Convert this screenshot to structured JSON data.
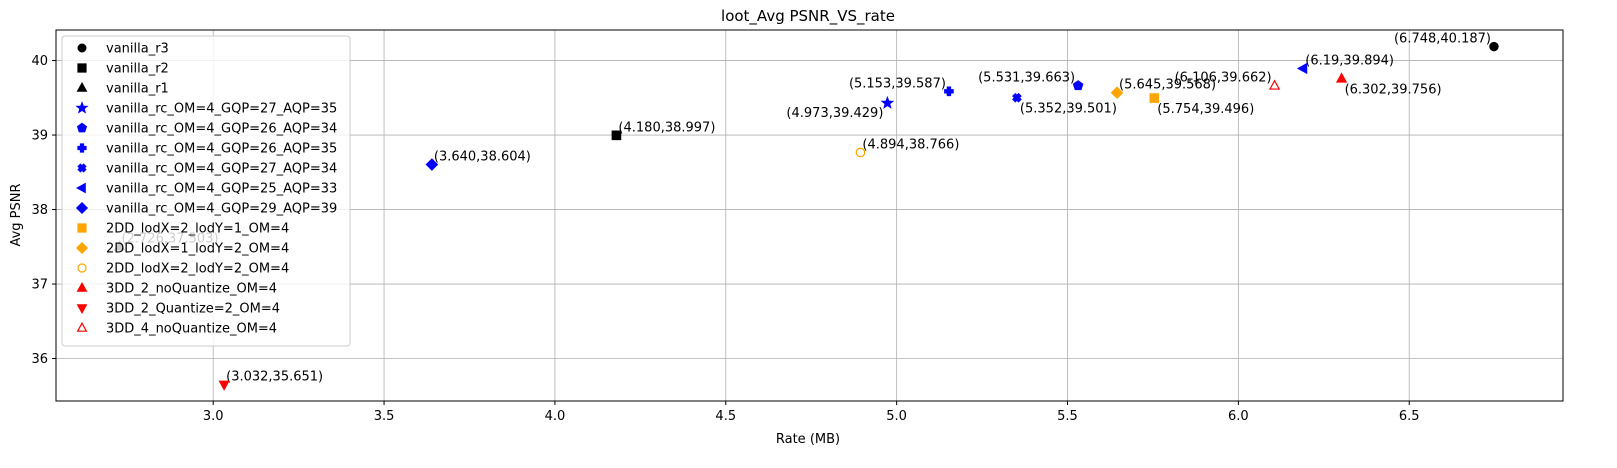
{
  "chart_data": {
    "type": "scatter",
    "title": "loot_Avg PSNR_VS_rate",
    "xlabel": "Rate (MB)",
    "ylabel": "Avg PSNR",
    "xlim": [
      2.54,
      6.95
    ],
    "ylim": [
      35.43,
      40.41
    ],
    "xticks": [
      3.0,
      3.5,
      4.0,
      4.5,
      5.0,
      5.5,
      6.0,
      6.5
    ],
    "xtick_labels": [
      "3.0",
      "3.5",
      "4.0",
      "4.5",
      "5.0",
      "5.5",
      "6.0",
      "6.5"
    ],
    "yticks": [
      36,
      37,
      38,
      39,
      40
    ],
    "ytick_labels": [
      "36",
      "37",
      "38",
      "39",
      "40"
    ],
    "grid": true,
    "legend_position": "upper-left",
    "series": [
      {
        "name": "vanilla_r3",
        "marker": "circle",
        "color": "#000000",
        "filled": true,
        "points": [
          {
            "x": 6.748,
            "y": 40.187,
            "label": "(6.748,40.187)",
            "label_pos": "upper-left"
          }
        ]
      },
      {
        "name": "vanilla_r2",
        "marker": "square",
        "color": "#000000",
        "filled": true,
        "points": [
          {
            "x": 4.18,
            "y": 38.997,
            "label": "(4.180,38.997)",
            "label_pos": "upper-right"
          }
        ]
      },
      {
        "name": "vanilla_r1",
        "marker": "triangle-up",
        "color": "#000000",
        "filled": true,
        "points": [
          {
            "x": 2.726,
            "y": 37.503,
            "label": "(2.726,37.503)",
            "label_pos": "upper-right"
          }
        ]
      },
      {
        "name": "vanilla_rc_OM=4_GQP=27_AQP=35",
        "marker": "star",
        "color": "#0000ff",
        "filled": true,
        "points": [
          {
            "x": 4.973,
            "y": 39.429,
            "label": "(4.973,39.429)",
            "label_pos": "lower-left"
          }
        ]
      },
      {
        "name": "vanilla_rc_OM=4_GQP=26_AQP=34",
        "marker": "pentagon",
        "color": "#0000ff",
        "filled": true,
        "points": [
          {
            "x": 5.531,
            "y": 39.663,
            "label": "(5.531,39.663)",
            "label_pos": "upper-left"
          }
        ]
      },
      {
        "name": "vanilla_rc_OM=4_GQP=26_AQP=35",
        "marker": "plus",
        "color": "#0000ff",
        "filled": true,
        "points": [
          {
            "x": 5.153,
            "y": 39.587,
            "label": "(5.153,39.587)",
            "label_pos": "upper-left"
          }
        ]
      },
      {
        "name": "vanilla_rc_OM=4_GQP=27_AQP=34",
        "marker": "x",
        "color": "#0000ff",
        "filled": true,
        "points": [
          {
            "x": 5.352,
            "y": 39.501,
            "label": "(5.352,39.501)",
            "label_pos": "lower-right"
          }
        ]
      },
      {
        "name": "vanilla_rc_OM=4_GQP=25_AQP=33",
        "marker": "triangle-left",
        "color": "#0000ff",
        "filled": true,
        "points": [
          {
            "x": 6.19,
            "y": 39.894,
            "label": "(6.19,39.894)",
            "label_pos": "upper-right"
          }
        ]
      },
      {
        "name": "vanilla_rc_OM=4_GQP=29_AQP=39",
        "marker": "diamond",
        "color": "#0000ff",
        "filled": true,
        "points": [
          {
            "x": 3.64,
            "y": 38.604,
            "label": "(3.640,38.604)",
            "label_pos": "upper-right"
          }
        ]
      },
      {
        "name": "2DD_lodX=2_lodY=1_OM=4",
        "marker": "square",
        "color": "#ffa500",
        "filled": true,
        "points": [
          {
            "x": 5.754,
            "y": 39.496,
            "label": "(5.754,39.496)",
            "label_pos": "lower-right"
          }
        ]
      },
      {
        "name": "2DD_lodX=1_lodY=2_OM=4",
        "marker": "diamond",
        "color": "#ffa500",
        "filled": true,
        "points": [
          {
            "x": 5.645,
            "y": 39.568,
            "label": "(5.645,39.568)",
            "label_pos": "upper-right"
          }
        ]
      },
      {
        "name": "2DD_lodX=2_lodY=2_OM=4",
        "marker": "octagon",
        "color": "#ffa500",
        "filled": false,
        "points": [
          {
            "x": 4.894,
            "y": 38.766,
            "label": "(4.894,38.766)",
            "label_pos": "upper-right"
          }
        ]
      },
      {
        "name": "3DD_2_noQuantize_OM=4",
        "marker": "triangle-up",
        "color": "#ff0000",
        "filled": true,
        "points": [
          {
            "x": 6.302,
            "y": 39.756,
            "label": "(6.302,39.756)",
            "label_pos": "lower-right"
          }
        ]
      },
      {
        "name": "3DD_2_Quantize=2_OM=4",
        "marker": "triangle-down",
        "color": "#ff0000",
        "filled": true,
        "points": [
          {
            "x": 3.032,
            "y": 35.651,
            "label": "(3.032,35.651)",
            "label_pos": "upper-right"
          }
        ]
      },
      {
        "name": "3DD_4_noQuantize_OM=4",
        "marker": "triangle-up",
        "color": "#ff0000",
        "filled": false,
        "points": [
          {
            "x": 6.106,
            "y": 39.662,
            "label": "(6.106,39.662)",
            "label_pos": "upper-left"
          }
        ]
      }
    ]
  }
}
